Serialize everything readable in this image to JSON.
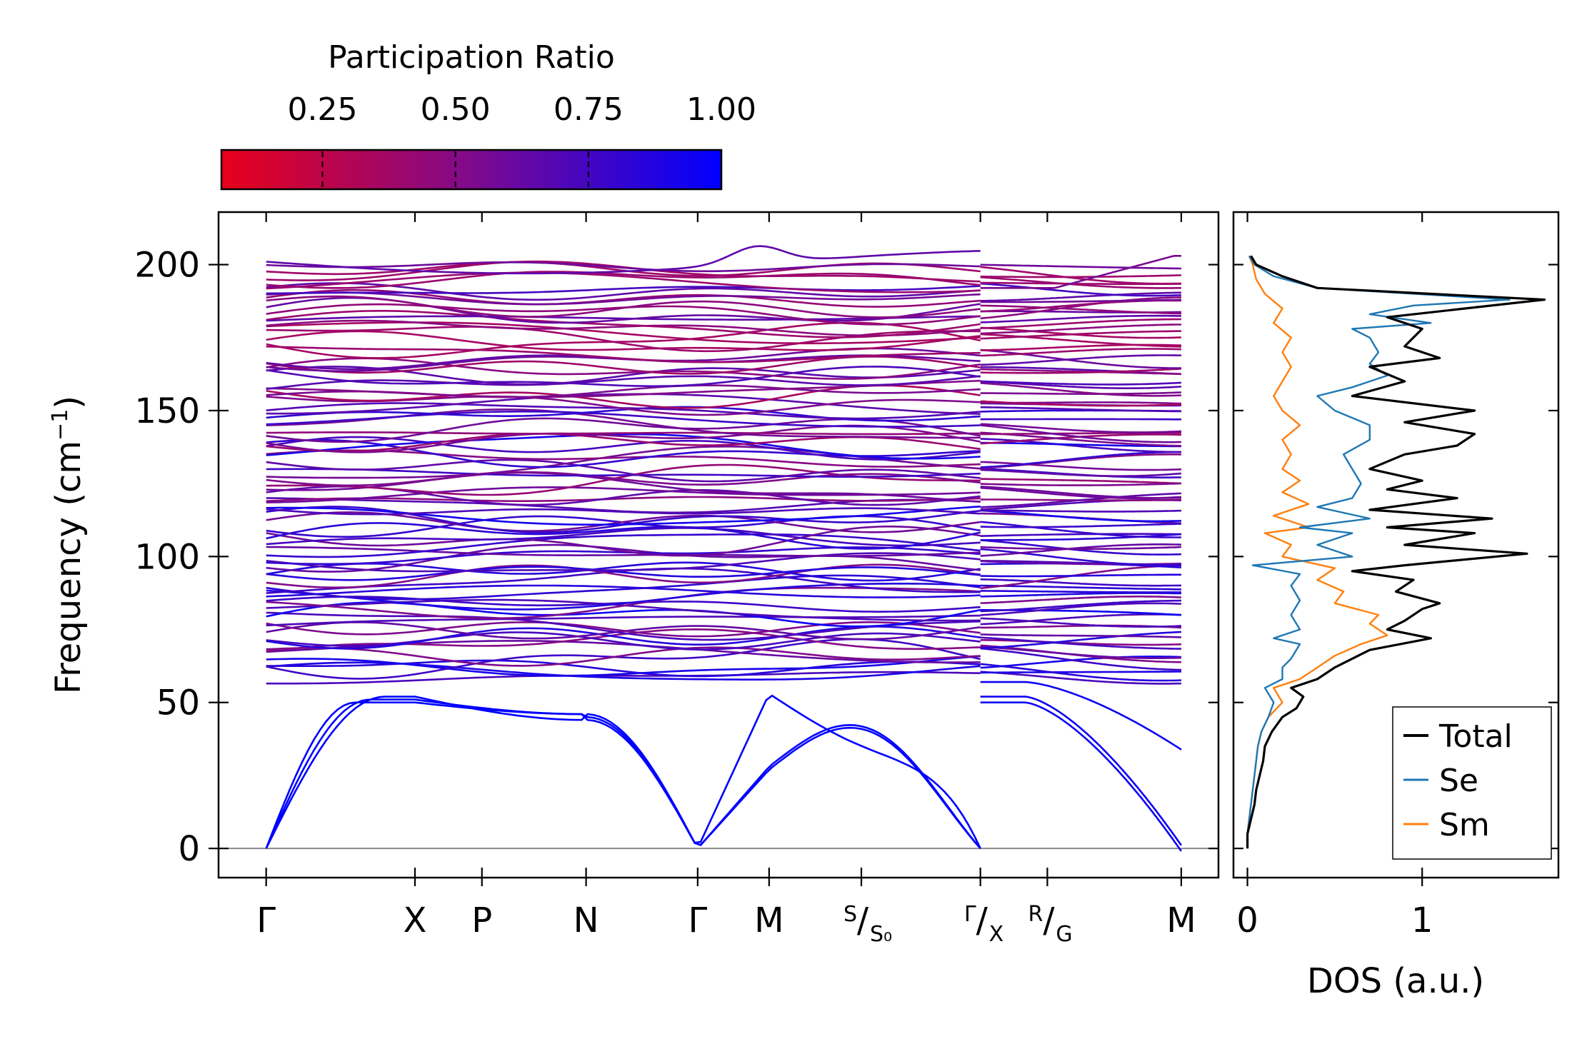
{
  "chart_data": [
    {
      "type": "line",
      "name": "phonon-band-structure",
      "ylabel": "Frequency (cm",
      "ylabel_sup": "−1",
      "ylabel_close": ")",
      "ylim": [
        -10,
        218
      ],
      "yticks": [
        0,
        50,
        100,
        150,
        200
      ],
      "ytick_labels": [
        "0",
        "50",
        "100",
        "150",
        "200"
      ],
      "kpoints": [
        {
          "pos": 0.0,
          "label": "Γ"
        },
        {
          "pos": 1.0,
          "label": "X"
        },
        {
          "pos": 1.45,
          "label": "P"
        },
        {
          "pos": 2.15,
          "label": "N"
        },
        {
          "pos": 2.9,
          "label": "Γ"
        },
        {
          "pos": 3.38,
          "label": "M"
        },
        {
          "pos": 4.0,
          "label_main": "S",
          "label_sub": "S₀"
        },
        {
          "pos": 4.8,
          "label_main": "Γ",
          "label_sub": "X"
        },
        {
          "pos": 5.25,
          "label_main": "R",
          "label_sub": "G"
        },
        {
          "pos": 6.15,
          "label": "M"
        }
      ],
      "xlim": [
        -0.32,
        6.4
      ],
      "segment_break": 4.8,
      "acoustic_branches_cm1": {
        "note": "three acoustic branches going to 0 at Gamma points",
        "gamma_X_end": [
          50,
          51,
          52
        ],
        "M_values": [
          27,
          28,
          53
        ]
      },
      "optical_band_range_cm1": [
        48,
        208
      ],
      "color_by": "participation_ratio"
    },
    {
      "type": "colorbar",
      "name": "participation-ratio-colorbar",
      "title": "Participation Ratio",
      "range": [
        0.06,
        1.0
      ],
      "ticks": [
        0.25,
        0.5,
        0.75,
        1.0
      ],
      "tick_labels": [
        "0.25",
        "0.50",
        "0.75",
        "1.00"
      ],
      "color_low": "#e8001a",
      "color_mid": "#7f0a8c",
      "color_high": "#0000ff"
    },
    {
      "type": "line",
      "name": "phonon-dos",
      "xlabel": "DOS (a.u.)",
      "xlim": [
        -0.08,
        1.78
      ],
      "xticks": [
        0,
        1
      ],
      "xtick_labels": [
        "0",
        "1"
      ],
      "ylim": [
        -10,
        218
      ],
      "series": [
        {
          "name": "Total",
          "color": "#000000",
          "points": [
            [
              0,
              0
            ],
            [
              0,
              5
            ],
            [
              0.02,
              10
            ],
            [
              0.04,
              15
            ],
            [
              0.05,
              20
            ],
            [
              0.07,
              25
            ],
            [
              0.09,
              30
            ],
            [
              0.1,
              35
            ],
            [
              0.14,
              40
            ],
            [
              0.2,
              45
            ],
            [
              0.28,
              48
            ],
            [
              0.32,
              52
            ],
            [
              0.25,
              55
            ],
            [
              0.4,
              58
            ],
            [
              0.5,
              62
            ],
            [
              0.6,
              65
            ],
            [
              0.7,
              68
            ],
            [
              1.05,
              72
            ],
            [
              0.8,
              75
            ],
            [
              0.9,
              78
            ],
            [
              1.0,
              82
            ],
            [
              1.1,
              84
            ],
            [
              0.85,
              88
            ],
            [
              0.95,
              92
            ],
            [
              0.6,
              95
            ],
            [
              0.9,
              97
            ],
            [
              1.6,
              101
            ],
            [
              0.9,
              104
            ],
            [
              1.3,
              108
            ],
            [
              0.8,
              110
            ],
            [
              1.4,
              113
            ],
            [
              0.7,
              116
            ],
            [
              1.2,
              120
            ],
            [
              0.8,
              123
            ],
            [
              1.0,
              126
            ],
            [
              0.7,
              130
            ],
            [
              0.9,
              135
            ],
            [
              1.2,
              138
            ],
            [
              1.3,
              142
            ],
            [
              0.9,
              146
            ],
            [
              1.3,
              150
            ],
            [
              0.6,
              155
            ],
            [
              0.9,
              160
            ],
            [
              0.7,
              165
            ],
            [
              1.1,
              168
            ],
            [
              0.9,
              172
            ],
            [
              1.0,
              178
            ],
            [
              0.8,
              182
            ],
            [
              1.25,
              185
            ],
            [
              1.7,
              188
            ],
            [
              0.4,
              192
            ],
            [
              0.2,
              196
            ],
            [
              0.05,
              200
            ],
            [
              0.02,
              203
            ]
          ]
        },
        {
          "name": "Se",
          "color": "#1f77b4",
          "points": [
            [
              0,
              0
            ],
            [
              0,
              5
            ],
            [
              0.01,
              10
            ],
            [
              0.02,
              15
            ],
            [
              0.03,
              20
            ],
            [
              0.04,
              25
            ],
            [
              0.05,
              30
            ],
            [
              0.06,
              35
            ],
            [
              0.08,
              40
            ],
            [
              0.12,
              45
            ],
            [
              0.15,
              50
            ],
            [
              0.1,
              55
            ],
            [
              0.2,
              58
            ],
            [
              0.2,
              62
            ],
            [
              0.25,
              65
            ],
            [
              0.3,
              70
            ],
            [
              0.15,
              72
            ],
            [
              0.3,
              75
            ],
            [
              0.25,
              80
            ],
            [
              0.3,
              85
            ],
            [
              0.25,
              90
            ],
            [
              0.3,
              94
            ],
            [
              0.03,
              97
            ],
            [
              0.6,
              100
            ],
            [
              0.4,
              104
            ],
            [
              0.6,
              108
            ],
            [
              0.3,
              110
            ],
            [
              0.7,
              113
            ],
            [
              0.4,
              117
            ],
            [
              0.6,
              120
            ],
            [
              0.65,
              125
            ],
            [
              0.6,
              130
            ],
            [
              0.55,
              135
            ],
            [
              0.7,
              140
            ],
            [
              0.7,
              145
            ],
            [
              0.5,
              150
            ],
            [
              0.4,
              155
            ],
            [
              0.6,
              158
            ],
            [
              0.8,
              162
            ],
            [
              0.7,
              166
            ],
            [
              0.75,
              170
            ],
            [
              0.7,
              175
            ],
            [
              0.6,
              178
            ],
            [
              1.05,
              180
            ],
            [
              0.7,
              183
            ],
            [
              0.95,
              186
            ],
            [
              1.5,
              188
            ],
            [
              0.4,
              192
            ],
            [
              0.15,
              196
            ],
            [
              0.04,
              200
            ],
            [
              0.01,
              203
            ]
          ]
        },
        {
          "name": "Sm",
          "color": "#ff7f0e",
          "points": [
            [
              0,
              0
            ],
            [
              0,
              5
            ],
            [
              0.01,
              10
            ],
            [
              0.02,
              15
            ],
            [
              0.03,
              20
            ],
            [
              0.04,
              25
            ],
            [
              0.05,
              30
            ],
            [
              0.06,
              35
            ],
            [
              0.08,
              40
            ],
            [
              0.12,
              45
            ],
            [
              0.2,
              50
            ],
            [
              0.15,
              55
            ],
            [
              0.3,
              58
            ],
            [
              0.4,
              62
            ],
            [
              0.5,
              66
            ],
            [
              0.65,
              70
            ],
            [
              0.8,
              73
            ],
            [
              0.7,
              77
            ],
            [
              0.75,
              80
            ],
            [
              0.5,
              84
            ],
            [
              0.55,
              88
            ],
            [
              0.4,
              92
            ],
            [
              0.5,
              96
            ],
            [
              0.2,
              100
            ],
            [
              0.25,
              104
            ],
            [
              0.1,
              108
            ],
            [
              0.35,
              110
            ],
            [
              0.15,
              114
            ],
            [
              0.35,
              118
            ],
            [
              0.2,
              122
            ],
            [
              0.3,
              126
            ],
            [
              0.2,
              130
            ],
            [
              0.25,
              135
            ],
            [
              0.2,
              140
            ],
            [
              0.3,
              145
            ],
            [
              0.2,
              150
            ],
            [
              0.15,
              155
            ],
            [
              0.2,
              160
            ],
            [
              0.25,
              165
            ],
            [
              0.2,
              170
            ],
            [
              0.25,
              175
            ],
            [
              0.15,
              180
            ],
            [
              0.2,
              185
            ],
            [
              0.1,
              190
            ],
            [
              0.05,
              195
            ],
            [
              0.03,
              200
            ],
            [
              0.01,
              203
            ]
          ]
        }
      ],
      "legend_position": "bottom-right"
    }
  ]
}
